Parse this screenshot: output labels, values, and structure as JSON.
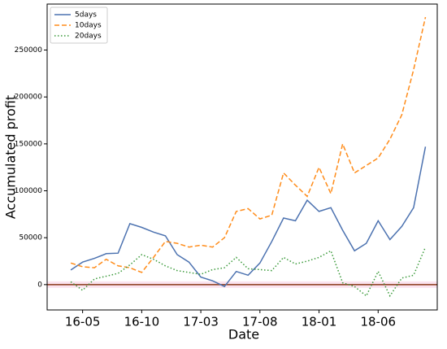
{
  "chart_data": {
    "type": "line",
    "xlabel": "Date",
    "ylabel": "Accumulated profit",
    "x": [
      "16-04",
      "16-05",
      "16-06",
      "16-07",
      "16-08",
      "16-09",
      "16-10",
      "16-11",
      "16-12",
      "17-01",
      "17-02",
      "17-03",
      "17-04",
      "17-05",
      "17-06",
      "17-07",
      "17-08",
      "17-09",
      "17-10",
      "17-11",
      "17-12",
      "18-01",
      "18-02",
      "18-03",
      "18-04",
      "18-05",
      "18-06",
      "18-07",
      "18-08",
      "18-09",
      "18-10"
    ],
    "xlim": [
      "16-02",
      "18-11"
    ],
    "xticks": [
      "16-05",
      "16-10",
      "17-03",
      "17-08",
      "18-01",
      "18-06"
    ],
    "ylim": [
      -27000,
      299000
    ],
    "yticks": [
      0,
      50000,
      100000,
      150000,
      200000,
      250000
    ],
    "hline": 0,
    "hline_color": "#8b3a1a",
    "legend": "upper left",
    "series": [
      {
        "name": "5days",
        "color": "#4c72b0",
        "style": "solid",
        "values": [
          15600,
          24000,
          28000,
          33000,
          33500,
          65000,
          61000,
          56000,
          52000,
          32000,
          24000,
          8000,
          4000,
          -2000,
          14000,
          10000,
          23000,
          46000,
          71000,
          68000,
          90000,
          78000,
          82000,
          58000,
          36000,
          44000,
          68000,
          48000,
          62000,
          82000,
          147000
        ]
      },
      {
        "name": "10days",
        "color": "#ff8c1a",
        "style": "dashed",
        "values": [
          23000,
          19000,
          18000,
          27000,
          20000,
          18000,
          13000,
          29000,
          46000,
          44000,
          40000,
          42000,
          40000,
          50000,
          78000,
          81000,
          70000,
          74000,
          119000,
          106000,
          94000,
          125000,
          97000,
          150000,
          119000,
          127000,
          135000,
          155000,
          181000,
          229000,
          285000
        ]
      },
      {
        "name": "20days",
        "color": "#3a9a3a",
        "style": "dotted",
        "values": [
          3000,
          -6000,
          6000,
          9000,
          12000,
          21000,
          32000,
          27000,
          20000,
          15000,
          13000,
          11000,
          16000,
          18000,
          29000,
          17000,
          16000,
          15000,
          29000,
          22000,
          25000,
          29000,
          36000,
          2000,
          -2000,
          -12000,
          14000,
          -12000,
          7000,
          10000,
          40000
        ]
      }
    ]
  }
}
